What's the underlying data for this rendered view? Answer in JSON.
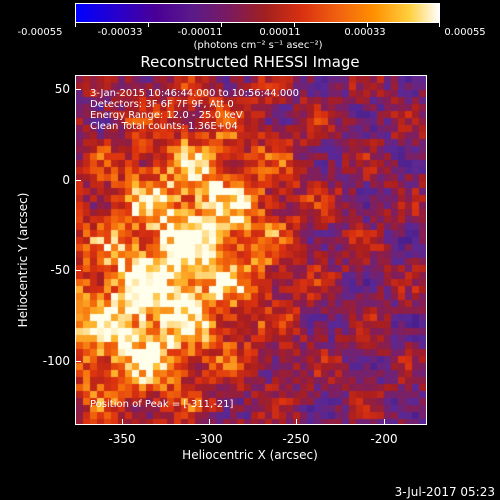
{
  "colorbar": {
    "tick_labels": [
      "-0.00055",
      "-0.00033",
      "-0.00011",
      "0.00011",
      "0.00033",
      "0.00055"
    ],
    "units": "(photons cm⁻² s⁻¹ asec⁻²)"
  },
  "chart_data": {
    "type": "heatmap",
    "title": "Reconstructed RHESSI Image",
    "xlabel": "Heliocentric X (arcsec)",
    "ylabel": "Heliocentric Y (arcsec)",
    "xlim": [
      -375,
      -180
    ],
    "ylim": [
      -135,
      60
    ],
    "x_ticks": [
      "-350",
      "-300",
      "-250",
      "-200"
    ],
    "y_ticks": [
      "50",
      "0",
      "-50",
      "-100"
    ],
    "colorbar_range": [
      -0.00055,
      0.00055
    ],
    "peak_position": [
      -311,
      -21
    ],
    "colors": {
      "low": "#0000ff",
      "mid_low": "#5a1a8a",
      "mid": "#a02020",
      "mid_high": "#f06010",
      "high": "#ffffff"
    }
  },
  "info": {
    "line1": "3-Jan-2015 10:46:44.000 to 10:56:44.000",
    "line2": "Detectors: 3F 6F 7F 9F, Att 0",
    "line3": "Energy Range: 12.0 - 25.0 keV",
    "line4": "Clean     Total counts: 1.36E+04",
    "peak": "Position of Peak = [-311,-21]"
  },
  "timestamp": "3-Jul-2017 05:23"
}
